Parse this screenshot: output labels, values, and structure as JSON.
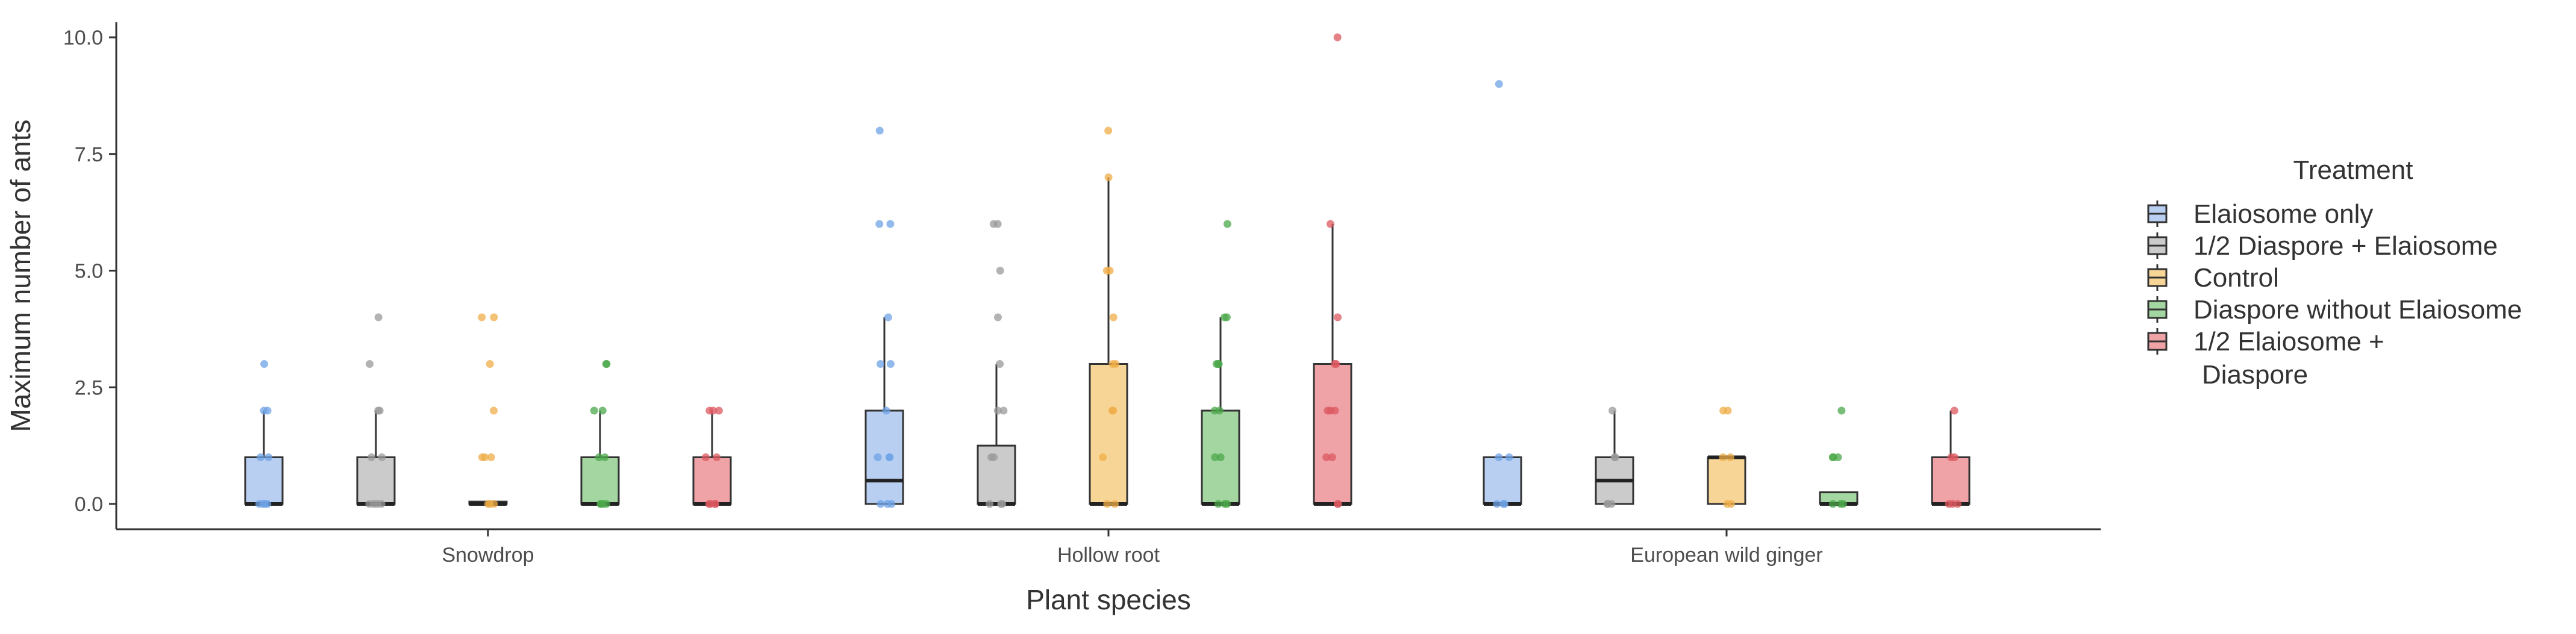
{
  "chart_data": {
    "type": "boxplot",
    "xlabel": "Plant species",
    "ylabel": "Maximum number of ants",
    "ylim": [
      -0.5,
      10.5
    ],
    "yticks": [
      0,
      2.5,
      5,
      7.5,
      10
    ],
    "ytick_labels": [
      "0.0",
      "2.5",
      "5.0",
      "7.5",
      "10.0"
    ],
    "categories": [
      "Snowdrop",
      "Hollow root",
      "European wild ginger"
    ],
    "legend_title": "Treatment",
    "series": [
      {
        "name": "Elaiosome only",
        "fill": "#b8cff2",
        "point": "#6fa3e6",
        "boxes": [
          {
            "q1": 0,
            "median": 0,
            "q3": 1,
            "whisker_low": 0,
            "whisker_high": 2,
            "points": [
              0,
              0,
              0,
              0,
              1,
              1,
              2,
              2,
              3
            ]
          },
          {
            "q1": 0,
            "median": 0.5,
            "q3": 2,
            "whisker_low": 0,
            "whisker_high": 4,
            "points": [
              0,
              0,
              0,
              1,
              1,
              1,
              2,
              3,
              3,
              4,
              6,
              6,
              8
            ]
          },
          {
            "q1": 0,
            "median": 0,
            "q3": 1,
            "whisker_low": 0,
            "whisker_high": 1,
            "points": [
              0,
              0,
              0,
              1,
              1,
              9
            ]
          }
        ]
      },
      {
        "name": "1/2 Diaspore + Elaiosome",
        "fill": "#cbcbcb",
        "point": "#9a9a9a",
        "boxes": [
          {
            "q1": 0,
            "median": 0,
            "q3": 1,
            "whisker_low": 0,
            "whisker_high": 2,
            "points": [
              0,
              0,
              0,
              0,
              1,
              1,
              2,
              2,
              3,
              4
            ]
          },
          {
            "q1": 0,
            "median": 0,
            "q3": 1.25,
            "whisker_low": 0,
            "whisker_high": 3,
            "points": [
              0,
              0,
              0,
              1,
              1,
              2,
              2,
              3,
              4,
              5,
              6,
              6
            ]
          },
          {
            "q1": 0,
            "median": 0.5,
            "q3": 1,
            "whisker_low": 0,
            "whisker_high": 2,
            "points": [
              0,
              0,
              0,
              1,
              1,
              2
            ]
          }
        ]
      },
      {
        "name": "Control",
        "fill": "#f7d596",
        "point": "#efad48",
        "boxes": [
          {
            "q1": 0,
            "median": 0,
            "q3": 0.05,
            "whisker_low": 0,
            "whisker_high": 0.05,
            "points": [
              0,
              0,
              0,
              1,
              1,
              1,
              2,
              3,
              4,
              4
            ]
          },
          {
            "q1": 0,
            "median": 0,
            "q3": 3,
            "whisker_low": 0,
            "whisker_high": 7,
            "points": [
              0,
              0,
              1,
              2,
              2,
              3,
              3,
              4,
              5,
              5,
              7,
              8
            ]
          },
          {
            "q1": 0,
            "median": 1,
            "q3": 1,
            "whisker_low": 0,
            "whisker_high": 1,
            "points": [
              0,
              0,
              1,
              1,
              2,
              2
            ]
          }
        ]
      },
      {
        "name": "Diaspore without Elaiosome",
        "fill": "#a3d6a1",
        "point": "#4ca84b",
        "boxes": [
          {
            "q1": 0,
            "median": 0,
            "q3": 1,
            "whisker_low": 0,
            "whisker_high": 2,
            "points": [
              0,
              0,
              0,
              0,
              1,
              1,
              2,
              2,
              3,
              3
            ]
          },
          {
            "q1": 0,
            "median": 0,
            "q3": 2,
            "whisker_low": 0,
            "whisker_high": 4,
            "points": [
              0,
              0,
              0,
              1,
              1,
              2,
              2,
              3,
              3,
              3,
              4,
              4,
              6
            ]
          },
          {
            "q1": 0,
            "median": 0,
            "q3": 0.25,
            "whisker_low": 0,
            "whisker_high": 0.25,
            "points": [
              0,
              0,
              0,
              1,
              1,
              1,
              2
            ]
          }
        ]
      },
      {
        "name": "1/2 Elaiosome +\n Diaspore",
        "fill": "#efa3a7",
        "point": "#dc5860",
        "boxes": [
          {
            "q1": 0,
            "median": 0,
            "q3": 1,
            "whisker_low": 0,
            "whisker_high": 2,
            "points": [
              0,
              0,
              0,
              0,
              1,
              1,
              2,
              2,
              2
            ]
          },
          {
            "q1": 0,
            "median": 0,
            "q3": 3,
            "whisker_low": 0,
            "whisker_high": 6,
            "points": [
              0,
              0,
              1,
              1,
              2,
              2,
              2,
              3,
              3,
              4,
              6,
              10
            ]
          },
          {
            "q1": 0,
            "median": 0,
            "q3": 1,
            "whisker_low": 0,
            "whisker_high": 2,
            "points": [
              0,
              0,
              0,
              1,
              1,
              2
            ]
          }
        ]
      }
    ]
  }
}
